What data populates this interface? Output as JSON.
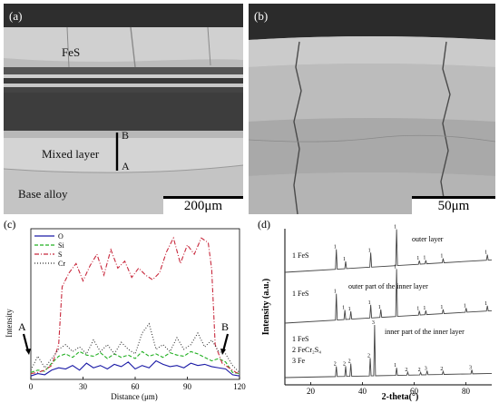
{
  "panel_a": {
    "label": "(a)",
    "layer_fes": "FeS",
    "layer_mixed": "Mixed layer",
    "layer_base": "Base alloy",
    "marker_top": "B",
    "marker_bottom": "A",
    "scale": "200μm"
  },
  "panel_b": {
    "label": "(b)",
    "scale": "50μm"
  },
  "panel_c": {
    "label": "(c)",
    "marker_a": "A",
    "marker_b": "B"
  },
  "panel_d": {
    "label": "(d)",
    "pattern_labels": {
      "outer": "outer layer",
      "outer_inner": "outer part of the inner layer",
      "inner_inner": "inner part of the inner layer"
    },
    "phase_legend_top": "1 FeS",
    "phase_legend_mid": "1 FeS",
    "phase_legend_bottom": [
      "1 FeS",
      "2 FeCr₂S₄",
      "3 Fe"
    ]
  },
  "chart_data": [
    {
      "type": "line",
      "panel": "(c)",
      "xlabel": "Distance (μm)",
      "ylabel": "Intensity",
      "xlim": [
        0,
        120
      ],
      "xticks": [
        0,
        30,
        60,
        90,
        120
      ],
      "legend_placement": "top-left",
      "grid": false,
      "series": [
        {
          "name": "O",
          "color": "#1a1aa6",
          "style": "solid",
          "x": [
            0,
            4,
            8,
            12,
            16,
            20,
            24,
            28,
            32,
            36,
            40,
            44,
            48,
            52,
            56,
            60,
            64,
            68,
            72,
            76,
            80,
            84,
            88,
            92,
            96,
            100,
            104,
            108,
            112,
            116,
            120
          ],
          "y": [
            3,
            5,
            4,
            8,
            10,
            9,
            12,
            8,
            14,
            10,
            12,
            9,
            13,
            11,
            15,
            9,
            12,
            10,
            16,
            13,
            11,
            12,
            10,
            14,
            12,
            13,
            11,
            10,
            9,
            4,
            3
          ]
        },
        {
          "name": "Si",
          "color": "#22b022",
          "style": "dashed",
          "x": [
            0,
            4,
            8,
            12,
            16,
            20,
            24,
            28,
            32,
            36,
            40,
            44,
            48,
            52,
            56,
            60,
            64,
            68,
            72,
            76,
            80,
            84,
            88,
            92,
            96,
            100,
            104,
            108,
            112,
            116,
            120
          ],
          "y": [
            6,
            8,
            7,
            14,
            20,
            22,
            19,
            24,
            21,
            20,
            23,
            18,
            22,
            19,
            21,
            18,
            24,
            20,
            22,
            19,
            23,
            21,
            20,
            24,
            22,
            19,
            16,
            18,
            15,
            6,
            5
          ]
        },
        {
          "name": "S",
          "color": "#c8283c",
          "style": "dashdot",
          "x": [
            0,
            4,
            8,
            12,
            16,
            18,
            22,
            26,
            30,
            34,
            38,
            42,
            46,
            50,
            54,
            58,
            62,
            66,
            70,
            74,
            78,
            82,
            86,
            90,
            94,
            98,
            102,
            104,
            106,
            110,
            114,
            118,
            120
          ],
          "y": [
            5,
            6,
            8,
            12,
            30,
            80,
            92,
            100,
            85,
            98,
            108,
            90,
            112,
            96,
            102,
            88,
            96,
            90,
            86,
            92,
            110,
            122,
            100,
            116,
            108,
            122,
            118,
            95,
            30,
            14,
            10,
            6,
            5
          ]
        },
        {
          "name": "Cr",
          "color": "#333333",
          "style": "dotted",
          "x": [
            0,
            4,
            8,
            12,
            16,
            20,
            24,
            28,
            32,
            36,
            40,
            44,
            48,
            52,
            56,
            60,
            64,
            68,
            72,
            76,
            80,
            84,
            88,
            92,
            96,
            100,
            104,
            108,
            112,
            116,
            120
          ],
          "y": [
            8,
            20,
            10,
            18,
            26,
            30,
            24,
            28,
            22,
            34,
            24,
            30,
            22,
            32,
            26,
            22,
            40,
            48,
            26,
            30,
            24,
            36,
            26,
            30,
            40,
            28,
            34,
            24,
            22,
            12,
            6
          ]
        }
      ]
    },
    {
      "type": "line",
      "panel": "(d)",
      "xlabel": "2-theta(°)",
      "ylabel": "Intensity (a.u.)",
      "xlim": [
        10,
        90
      ],
      "xticks": [
        20,
        40,
        60,
        80
      ],
      "grid": false,
      "series": [
        {
          "name": "outer layer",
          "peaks": [
            {
              "x": 29.9,
              "h": 0.55,
              "label": "1"
            },
            {
              "x": 33.5,
              "h": 0.2,
              "label": "1"
            },
            {
              "x": 43.2,
              "h": 0.4,
              "label": "1"
            },
            {
              "x": 53.2,
              "h": 1.0,
              "label": "1"
            },
            {
              "x": 62.0,
              "h": 0.1,
              "label": "1"
            },
            {
              "x": 64.5,
              "h": 0.1,
              "label": "1"
            },
            {
              "x": 71.2,
              "h": 0.12,
              "label": "1"
            },
            {
              "x": 88.3,
              "h": 0.15,
              "label": "1"
            }
          ]
        },
        {
          "name": "outer part of the inner layer",
          "peaks": [
            {
              "x": 29.9,
              "h": 0.5,
              "label": "1"
            },
            {
              "x": 33.2,
              "h": 0.18,
              "label": "1"
            },
            {
              "x": 35.5,
              "h": 0.15,
              "label": "1"
            },
            {
              "x": 43.2,
              "h": 0.25,
              "label": "1"
            },
            {
              "x": 47.1,
              "h": 0.15,
              "label": "1"
            },
            {
              "x": 53.2,
              "h": 0.9,
              "label": "1"
            },
            {
              "x": 62.0,
              "h": 0.08,
              "label": "1"
            },
            {
              "x": 64.5,
              "h": 0.08,
              "label": "1"
            },
            {
              "x": 71.2,
              "h": 0.08,
              "label": "1"
            },
            {
              "x": 80.1,
              "h": 0.08,
              "label": "1"
            },
            {
              "x": 88.3,
              "h": 0.1,
              "label": "1"
            }
          ]
        },
        {
          "name": "inner part of the inner layer",
          "peaks": [
            {
              "x": 29.9,
              "h": 0.2,
              "label": "2"
            },
            {
              "x": 33.5,
              "h": 0.2,
              "label": "2"
            },
            {
              "x": 35.5,
              "h": 0.25,
              "label": "2"
            },
            {
              "x": 43.0,
              "h": 0.35,
              "label": "2"
            },
            {
              "x": 44.7,
              "h": 1.0,
              "label": "3"
            },
            {
              "x": 53.2,
              "h": 0.15,
              "label": "1"
            },
            {
              "x": 57.5,
              "h": 0.06,
              "label": "2"
            },
            {
              "x": 62.5,
              "h": 0.05,
              "label": "2"
            },
            {
              "x": 65.0,
              "h": 0.08,
              "label": "3"
            },
            {
              "x": 71.2,
              "h": 0.06,
              "label": "2"
            },
            {
              "x": 82.3,
              "h": 0.08,
              "label": "3"
            }
          ]
        }
      ]
    }
  ]
}
